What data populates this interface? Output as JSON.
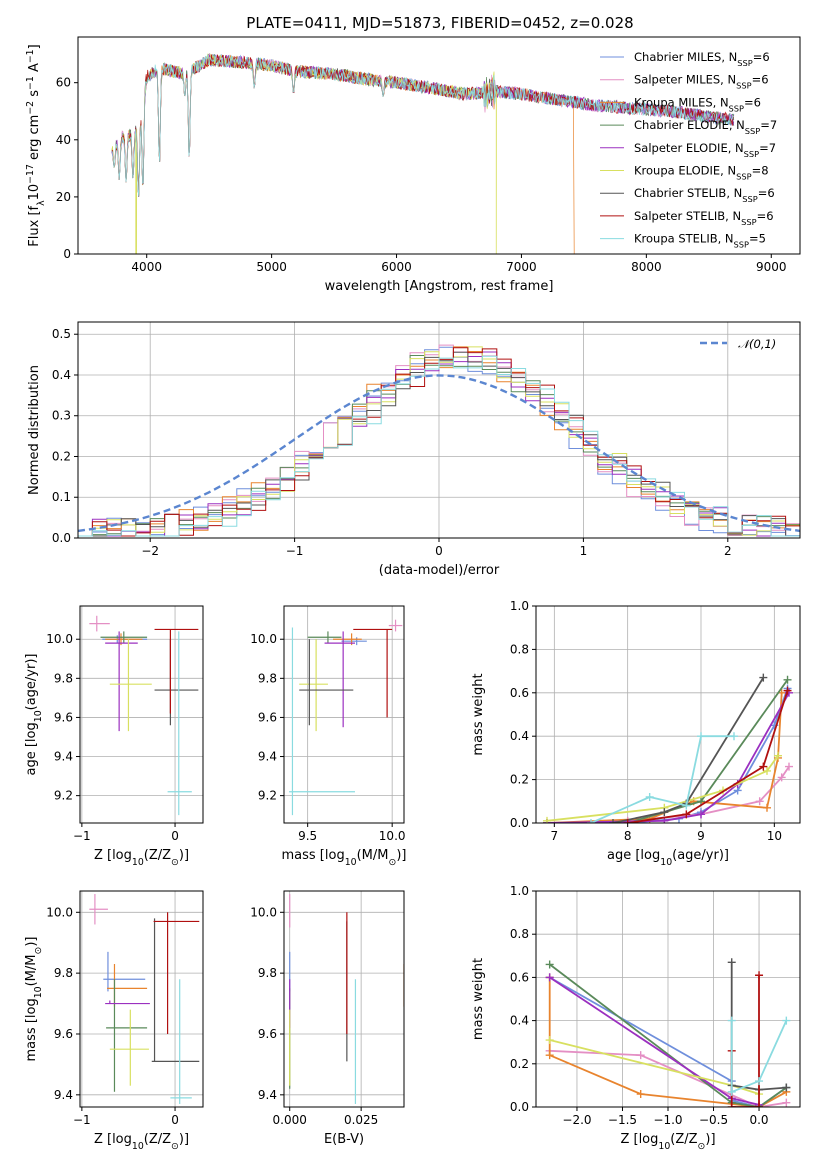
{
  "title": "PLATE=0411, MJD=51873, FIBERID=0452, z=0.028",
  "series": [
    {
      "name": "Chabrier MILES, N$_{SSP}$=6",
      "color": "#6f8fdc"
    },
    {
      "name": "Salpeter MILES, N$_{SSP}$=6",
      "color": "#e48fc4"
    },
    {
      "name": "Kroupa MILES, N$_{SSP}$=6",
      "color": "#e8842e"
    },
    {
      "name": "Chabrier ELODIE, N$_{SSP}$=7",
      "color": "#5a8a5a"
    },
    {
      "name": "Salpeter ELODIE, N$_{SSP}$=7",
      "color": "#9b30c0"
    },
    {
      "name": "Kroupa ELODIE, N$_{SSP}$=8",
      "color": "#d8e060"
    },
    {
      "name": "Chabrier STELIB, N$_{SSP}$=6",
      "color": "#555555"
    },
    {
      "name": "Salpeter STELIB, N$_{SSP}$=6",
      "color": "#b01010"
    },
    {
      "name": "Kroupa STELIB, N$_{SSP}$=5",
      "color": "#8adbe0"
    }
  ],
  "chart_data": [
    {
      "id": "spectrum",
      "type": "line",
      "xlabel": "wavelength [Angstrom, rest frame]",
      "ylabel": "Flux [f$_\\lambda$10$^{-17}$ erg cm$^{-2}$ s$^{-1}$ A$^{-1}$]",
      "xlim": [
        3450,
        9230
      ],
      "ylim": [
        0,
        76
      ],
      "xticks": [
        4000,
        5000,
        6000,
        7000,
        8000,
        9000
      ],
      "yticks": [
        0,
        20,
        40,
        60
      ],
      "grid": false,
      "legend": "top-right",
      "continuum": [
        [
          3720,
          37
        ],
        [
          3800,
          41
        ],
        [
          3900,
          42
        ],
        [
          3950,
          47
        ],
        [
          4000,
          62
        ],
        [
          4100,
          65
        ],
        [
          4300,
          63
        ],
        [
          4500,
          68
        ],
        [
          4800,
          67
        ],
        [
          5000,
          66
        ],
        [
          5200,
          64
        ],
        [
          5500,
          63
        ],
        [
          5800,
          61
        ],
        [
          6000,
          60
        ],
        [
          6300,
          58
        ],
        [
          6550,
          56
        ],
        [
          6800,
          57
        ],
        [
          7000,
          56
        ],
        [
          7300,
          54
        ],
        [
          7600,
          52
        ],
        [
          7900,
          51
        ],
        [
          8200,
          50
        ],
        [
          8500,
          48
        ],
        [
          8700,
          47
        ]
      ],
      "absorption_lines": [
        {
          "x": 3740,
          "y": 30
        },
        {
          "x": 3780,
          "y": 26
        },
        {
          "x": 3835,
          "y": 25
        },
        {
          "x": 3890,
          "y": 26
        },
        {
          "x": 3934,
          "y": 19
        },
        {
          "x": 3969,
          "y": 22
        },
        {
          "x": 4102,
          "y": 31
        },
        {
          "x": 4305,
          "y": 55
        },
        {
          "x": 4340,
          "y": 33
        },
        {
          "x": 4861,
          "y": 58
        },
        {
          "x": 5175,
          "y": 56
        },
        {
          "x": 5893,
          "y": 55
        }
      ],
      "dropouts": [
        {
          "series": 5,
          "x": 3915
        },
        {
          "series": 5,
          "x": 6800
        },
        {
          "series": 2,
          "x": 7420
        }
      ]
    },
    {
      "id": "residual_hist",
      "type": "line",
      "xlabel": "(data-model)/error",
      "ylabel": "Normed distribution",
      "xlim": [
        -2.5,
        2.5
      ],
      "ylim": [
        0,
        0.53
      ],
      "xticks": [
        -2,
        -1,
        0,
        1,
        2
      ],
      "yticks": [
        0.0,
        0.1,
        0.2,
        0.3,
        0.4,
        0.5
      ],
      "grid": true,
      "legend": "top-right",
      "reference_curve": {
        "name": "$\\mathcal{N}(0,1)$",
        "color": "#5b86d0",
        "mean": 0,
        "sigma": 1
      },
      "histogram": {
        "bin_width": 0.1,
        "peak": 0.43,
        "center": 0.15,
        "width": 1.05
      }
    },
    {
      "id": "age_vs_Z",
      "type": "scatter",
      "xlabel": "Z [log$_{10}$(Z/Z$_\\odot$)]",
      "ylabel": "age  [log$_{10}$(age/yr)]",
      "xlim": [
        -1.02,
        0.3
      ],
      "ylim": [
        9.06,
        10.17
      ],
      "xticks": [
        -1,
        0
      ],
      "yticks": [
        9.2,
        9.4,
        9.6,
        9.8,
        10.0
      ],
      "grid": true,
      "points": [
        {
          "s": 0,
          "x": -0.62,
          "y": 10.0,
          "xlo": -0.78,
          "xhi": -0.3,
          "ylo": 9.98,
          "yhi": 10.02
        },
        {
          "s": 1,
          "x": -0.84,
          "y": 10.08,
          "xlo": -0.92,
          "xhi": -0.7,
          "ylo": 10.04,
          "yhi": 10.12
        },
        {
          "s": 2,
          "x": -0.58,
          "y": 10.0,
          "xlo": -0.75,
          "xhi": -0.35,
          "ylo": 9.97,
          "yhi": 10.03
        },
        {
          "s": 3,
          "x": -0.55,
          "y": 10.01,
          "xlo": -0.8,
          "xhi": -0.3,
          "ylo": 9.98,
          "yhi": 10.04
        },
        {
          "s": 4,
          "x": -0.6,
          "y": 9.98,
          "xlo": -0.75,
          "xhi": -0.4,
          "ylo": 9.53,
          "yhi": 10.04
        },
        {
          "s": 5,
          "x": -0.5,
          "y": 9.77,
          "xlo": -0.7,
          "xhi": -0.25,
          "ylo": 9.53,
          "yhi": 10.0
        },
        {
          "s": 6,
          "x": -0.05,
          "y": 9.74,
          "xlo": -0.22,
          "xhi": 0.25,
          "ylo": 9.56,
          "yhi": 10.0
        },
        {
          "s": 7,
          "x": -0.05,
          "y": 10.05,
          "xlo": -0.22,
          "xhi": 0.25,
          "ylo": 9.62,
          "yhi": 10.05
        },
        {
          "s": 8,
          "x": 0.04,
          "y": 9.22,
          "xlo": -0.08,
          "xhi": 0.18,
          "ylo": 9.1,
          "yhi": 10.04
        }
      ]
    },
    {
      "id": "age_vs_mass",
      "type": "scatter",
      "xlabel": "mass [log$_{10}$(M/M$_\\odot$)]",
      "ylabel": "",
      "xlim": [
        9.36,
        10.07
      ],
      "ylim": [
        9.06,
        10.17
      ],
      "xticks": [
        9.5,
        10.0
      ],
      "yticks": [
        9.2,
        9.4,
        9.6,
        9.8,
        10.0
      ],
      "grid": true,
      "points": [
        {
          "s": 0,
          "x": 9.79,
          "y": 9.99,
          "xlo": 9.7,
          "xhi": 9.85,
          "ylo": 9.97,
          "yhi": 10.01
        },
        {
          "s": 1,
          "x": 10.02,
          "y": 10.07,
          "xlo": 9.98,
          "xhi": 10.06,
          "ylo": 10.04,
          "yhi": 10.1
        },
        {
          "s": 2,
          "x": 9.76,
          "y": 10.0,
          "xlo": 9.65,
          "xhi": 9.82,
          "ylo": 9.97,
          "yhi": 10.03
        },
        {
          "s": 3,
          "x": 9.62,
          "y": 10.01,
          "xlo": 9.5,
          "xhi": 9.7,
          "ylo": 9.98,
          "yhi": 10.04
        },
        {
          "s": 4,
          "x": 9.71,
          "y": 9.98,
          "xlo": 9.6,
          "xhi": 9.78,
          "ylo": 9.55,
          "yhi": 10.04
        },
        {
          "s": 5,
          "x": 9.55,
          "y": 9.77,
          "xlo": 9.45,
          "xhi": 9.62,
          "ylo": 9.53,
          "yhi": 10.0
        },
        {
          "s": 6,
          "x": 9.51,
          "y": 9.74,
          "xlo": 9.45,
          "xhi": 9.77,
          "ylo": 9.56,
          "yhi": 10.0
        },
        {
          "s": 7,
          "x": 9.97,
          "y": 10.05,
          "xlo": 9.77,
          "xhi": 10.0,
          "ylo": 9.6,
          "yhi": 10.05
        },
        {
          "s": 8,
          "x": 9.41,
          "y": 9.22,
          "xlo": 9.39,
          "xhi": 9.78,
          "ylo": 9.1,
          "yhi": 10.06
        }
      ]
    },
    {
      "id": "massweight_vs_age",
      "type": "line",
      "xlabel": "age  [log$_{10}$(age/yr)]",
      "ylabel": "mass weight",
      "xlim": [
        6.75,
        10.35
      ],
      "ylim": [
        0,
        1.0
      ],
      "xticks": [
        7,
        8,
        9,
        10
      ],
      "yticks": [
        0.0,
        0.2,
        0.4,
        0.6,
        0.8,
        1.0
      ],
      "grid": true,
      "lines": [
        {
          "s": 0,
          "points": [
            [
              8.0,
              0.0
            ],
            [
              8.7,
              0.02
            ],
            [
              9.0,
              0.05
            ],
            [
              9.5,
              0.15
            ],
            [
              10.0,
              0.45
            ],
            [
              10.18,
              0.62
            ]
          ]
        },
        {
          "s": 1,
          "points": [
            [
              6.9,
              0.0
            ],
            [
              8.0,
              0.01
            ],
            [
              9.0,
              0.04
            ],
            [
              9.8,
              0.1
            ],
            [
              10.1,
              0.21
            ],
            [
              10.2,
              0.26
            ]
          ]
        },
        {
          "s": 2,
          "points": [
            [
              6.9,
              0.0
            ],
            [
              8.3,
              0.02
            ],
            [
              8.9,
              0.1
            ],
            [
              9.9,
              0.07
            ],
            [
              10.05,
              0.3
            ],
            [
              10.1,
              0.6
            ]
          ]
        },
        {
          "s": 3,
          "points": [
            [
              6.9,
              0.0
            ],
            [
              8.0,
              0.0
            ],
            [
              9.0,
              0.1
            ],
            [
              10.18,
              0.66
            ]
          ]
        },
        {
          "s": 4,
          "points": [
            [
              6.9,
              0.0
            ],
            [
              8.5,
              0.01
            ],
            [
              9.0,
              0.04
            ],
            [
              9.5,
              0.18
            ],
            [
              10.2,
              0.6
            ]
          ]
        },
        {
          "s": 5,
          "points": [
            [
              6.9,
              0.01
            ],
            [
              8.5,
              0.07
            ],
            [
              9.3,
              0.15
            ],
            [
              9.9,
              0.24
            ],
            [
              10.05,
              0.31
            ]
          ]
        },
        {
          "s": 6,
          "points": [
            [
              7.8,
              0.0
            ],
            [
              8.5,
              0.05
            ],
            [
              8.8,
              0.09
            ],
            [
              9.85,
              0.67
            ]
          ]
        },
        {
          "s": 7,
          "points": [
            [
              8.0,
              0.0
            ],
            [
              8.8,
              0.04
            ],
            [
              9.85,
              0.26
            ],
            [
              10.18,
              0.61
            ]
          ]
        },
        {
          "s": 8,
          "points": [
            [
              7.5,
              0.0
            ],
            [
              8.3,
              0.12
            ],
            [
              8.8,
              0.08
            ],
            [
              9.0,
              0.4
            ],
            [
              9.45,
              0.4
            ]
          ]
        }
      ]
    },
    {
      "id": "mass_vs_Z",
      "type": "scatter",
      "xlabel": "Z [log$_{10}$(Z/Z$_\\odot$)]",
      "ylabel": "mass [log$_{10}$(M/M$_\\odot$)]",
      "xlim": [
        -1.02,
        0.3
      ],
      "ylim": [
        9.36,
        10.07
      ],
      "xticks": [
        -1,
        0
      ],
      "yticks": [
        9.4,
        9.6,
        9.8,
        10.0
      ],
      "grid": true,
      "points": [
        {
          "s": 0,
          "x": -0.72,
          "y": 9.78,
          "xlo": -0.77,
          "xhi": -0.32,
          "ylo": 9.74,
          "yhi": 9.87
        },
        {
          "s": 1,
          "x": -0.86,
          "y": 10.01,
          "xlo": -0.92,
          "xhi": -0.72,
          "ylo": 9.96,
          "yhi": 10.06
        },
        {
          "s": 2,
          "x": -0.65,
          "y": 9.75,
          "xlo": -0.73,
          "xhi": -0.3,
          "ylo": 9.69,
          "yhi": 9.83
        },
        {
          "s": 3,
          "x": -0.65,
          "y": 9.62,
          "xlo": -0.74,
          "xhi": -0.3,
          "ylo": 9.41,
          "yhi": 9.78
        },
        {
          "s": 4,
          "x": -0.7,
          "y": 9.7,
          "xlo": -0.75,
          "xhi": -0.27,
          "ylo": 9.7,
          "yhi": 9.71
        },
        {
          "s": 5,
          "x": -0.48,
          "y": 9.55,
          "xlo": -0.7,
          "xhi": -0.28,
          "ylo": 9.43,
          "yhi": 9.68
        },
        {
          "s": 6,
          "x": -0.22,
          "y": 9.51,
          "xlo": -0.25,
          "xhi": 0.26,
          "ylo": 9.51,
          "yhi": 9.98
        },
        {
          "s": 7,
          "x": -0.08,
          "y": 9.97,
          "xlo": -0.23,
          "xhi": 0.26,
          "ylo": 9.6,
          "yhi": 10.0
        },
        {
          "s": 8,
          "x": 0.05,
          "y": 9.39,
          "xlo": -0.05,
          "xhi": 0.18,
          "ylo": 9.37,
          "yhi": 9.78
        }
      ]
    },
    {
      "id": "mass_vs_ebv",
      "type": "scatter",
      "xlabel": "E(B-V)",
      "ylabel": "",
      "xlim": [
        -0.002,
        0.04
      ],
      "ylim": [
        9.36,
        10.07
      ],
      "xticks": [
        0.0,
        0.025
      ],
      "xticklabels": [
        "0.000",
        "0.025"
      ],
      "yticks": [
        9.4,
        9.6,
        9.8,
        10.0
      ],
      "grid": true,
      "points": [
        {
          "s": 0,
          "x": 0.0,
          "y": 9.78,
          "ylo": 9.74,
          "yhi": 9.87
        },
        {
          "s": 1,
          "x": 0.0,
          "y": 10.0,
          "ylo": 9.95,
          "yhi": 10.06
        },
        {
          "s": 2,
          "x": 0.04,
          "y": 9.75,
          "ylo": 9.69,
          "yhi": 9.83
        },
        {
          "s": 3,
          "x": 0.0,
          "y": 9.62,
          "ylo": 9.42,
          "yhi": 9.75
        },
        {
          "s": 4,
          "x": 0.0,
          "y": 9.7,
          "ylo": 9.62,
          "yhi": 9.78
        },
        {
          "s": 5,
          "x": 0.0,
          "y": 9.55,
          "ylo": 9.43,
          "yhi": 9.68
        },
        {
          "s": 6,
          "x": 0.02,
          "y": 9.51,
          "ylo": 9.51,
          "yhi": 9.97
        },
        {
          "s": 7,
          "x": 0.02,
          "y": 9.97,
          "ylo": 9.6,
          "yhi": 10.0
        },
        {
          "s": 8,
          "x": 0.023,
          "y": 9.39,
          "ylo": 9.37,
          "yhi": 9.78
        }
      ]
    },
    {
      "id": "massweight_vs_Z",
      "type": "line",
      "xlabel": "Z [log$_{10}$(Z/Z$_\\odot$)]",
      "ylabel": "mass weight",
      "xlim": [
        -2.45,
        0.45
      ],
      "ylim": [
        0,
        1.0
      ],
      "xticks": [
        -2.0,
        -1.5,
        -1.0,
        -0.5,
        0.0
      ],
      "xticklabels": [
        "−2.0",
        "−1.5",
        "−1.0",
        "−0.5",
        "0.0"
      ],
      "yticks": [
        0.0,
        0.2,
        0.4,
        0.6,
        0.8,
        1.0
      ],
      "grid": true,
      "lines": [
        {
          "s": 0,
          "points": [
            [
              -2.3,
              0.6
            ],
            [
              -0.3,
              0.12
            ],
            [
              -0.3,
              0.03
            ],
            [
              0.0,
              0.0
            ],
            [
              0.3,
              0.09
            ]
          ]
        },
        {
          "s": 1,
          "points": [
            [
              -2.3,
              0.26
            ],
            [
              -1.3,
              0.24
            ],
            [
              0.0,
              0.0
            ],
            [
              0.3,
              0.02
            ]
          ]
        },
        {
          "s": 2,
          "points": [
            [
              -2.3,
              0.6
            ],
            [
              -2.3,
              0.24
            ],
            [
              -1.3,
              0.06
            ],
            [
              0.0,
              0.0
            ],
            [
              0.3,
              0.07
            ]
          ]
        },
        {
          "s": 3,
          "points": [
            [
              -2.3,
              0.66
            ],
            [
              -0.3,
              0.02
            ],
            [
              0.0,
              0.0
            ],
            [
              0.3,
              0.09
            ]
          ]
        },
        {
          "s": 4,
          "points": [
            [
              -2.3,
              0.6
            ],
            [
              -0.3,
              0.04
            ],
            [
              0.0,
              0.01
            ]
          ]
        },
        {
          "s": 5,
          "points": [
            [
              -2.3,
              0.31
            ],
            [
              -0.3,
              0.1
            ],
            [
              0.0,
              0.06
            ]
          ]
        },
        {
          "s": 6,
          "points": [
            [
              -0.3,
              0.67
            ],
            [
              -0.3,
              0.1
            ],
            [
              0.0,
              0.08
            ],
            [
              0.3,
              0.09
            ]
          ]
        },
        {
          "s": 7,
          "points": [
            [
              -0.3,
              0.26
            ],
            [
              -0.3,
              0.0
            ],
            [
              0.0,
              0.0
            ],
            [
              0.0,
              0.61
            ]
          ]
        },
        {
          "s": 8,
          "points": [
            [
              -0.3,
              0.4
            ],
            [
              -0.3,
              0.07
            ],
            [
              0.0,
              0.12
            ],
            [
              0.3,
              0.4
            ]
          ]
        }
      ]
    }
  ]
}
